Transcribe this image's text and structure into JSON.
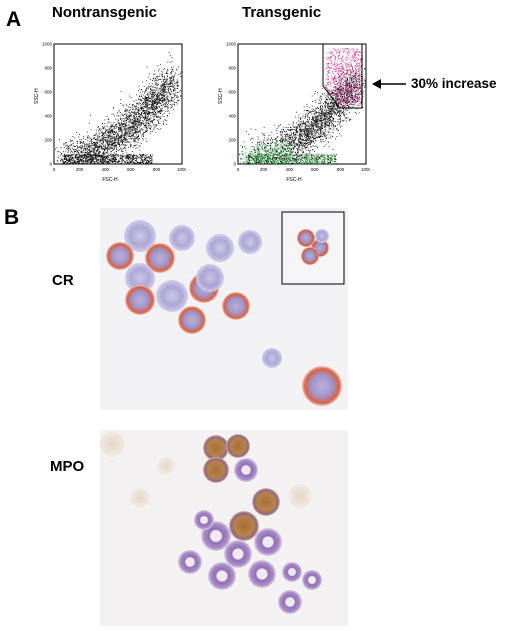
{
  "figure": {
    "panel_a": {
      "letter": "A",
      "plots": [
        {
          "title": "Nontransgenic",
          "y_axis_label": "SSC-H",
          "x_axis_label": "FSC-H",
          "y_ticks": [
            "0",
            "200",
            "400",
            "600",
            "800",
            "1000"
          ],
          "x_ticks": [
            "0",
            "200",
            "400",
            "600",
            "800",
            "1000"
          ]
        },
        {
          "title": "Transgenic",
          "y_axis_label": "SSC-H",
          "x_axis_label": "FSC-H",
          "y_ticks": [
            "0",
            "200",
            "400",
            "600",
            "800",
            "1000"
          ],
          "x_ticks": [
            "0",
            "200",
            "400",
            "600",
            "800",
            "1000"
          ]
        }
      ],
      "annotation": "30% increase",
      "colors": {
        "dots": "#111111",
        "gated_dots": "#e0359a",
        "low_dots": "#39b54a"
      }
    },
    "panel_b": {
      "letter": "B",
      "images": [
        {
          "label": "CR"
        },
        {
          "label": "MPO"
        }
      ]
    }
  }
}
